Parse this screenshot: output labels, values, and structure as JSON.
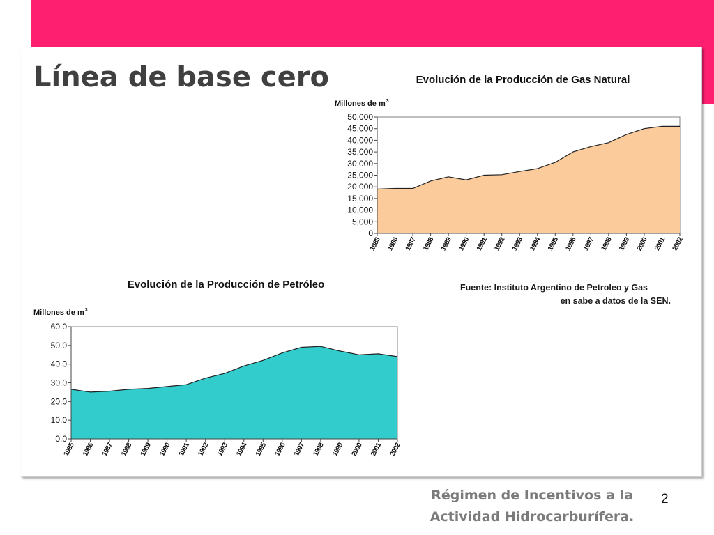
{
  "slide": {
    "title": "Línea de base cero",
    "source_line1": "Fuente:  Instituto Argentino de Petroleo y Gas",
    "source_line2": "en sabe a datos de la SEN.",
    "footer_line1": "Régimen de Incentivos a la",
    "footer_line2": "Actividad Hidrocarburífera.",
    "page_number": "2",
    "colors": {
      "band": "#ff1f70",
      "gas_fill": "#fccb9c",
      "oil_fill": "#33cccc"
    }
  },
  "chart_data": [
    {
      "type": "area",
      "title": "Evolución de la Producción de Gas Natural",
      "ylabel": "Millones de m",
      "ylabel_sup": "3",
      "x": [
        "1985",
        "1986",
        "1987",
        "1988",
        "1989",
        "1990",
        "1991",
        "1992",
        "1993",
        "1994",
        "1995",
        "1996",
        "1997",
        "1998",
        "1999",
        "2000",
        "2001",
        "2002"
      ],
      "series": [
        {
          "values": [
            19000,
            19300,
            19300,
            22500,
            24300,
            23000,
            25000,
            25200,
            26600,
            27800,
            30500,
            35000,
            37300,
            39000,
            42500,
            45000,
            46000,
            46000
          ]
        }
      ],
      "ylim": [
        0,
        50000
      ],
      "yticks": [
        "0",
        "5,000",
        "10,000",
        "15,000",
        "20,000",
        "25,000",
        "30,000",
        "35,000",
        "40,000",
        "45,000",
        "50,000"
      ],
      "grid": false,
      "fill_color": "#fccb9c"
    },
    {
      "type": "area",
      "title": "Evolución de la Producción de Petróleo",
      "ylabel": "Millones de m",
      "ylabel_sup": "3",
      "x": [
        "1985",
        "1986",
        "1987",
        "1988",
        "1989",
        "1990",
        "1991",
        "1992",
        "1993",
        "1994",
        "1995",
        "1996",
        "1997",
        "1998",
        "1999",
        "2000",
        "2001",
        "2002"
      ],
      "series": [
        {
          "values": [
            26.5,
            25,
            25.5,
            26.5,
            27,
            28,
            29,
            32.5,
            35,
            39,
            42,
            46,
            49,
            49.5,
            47,
            45,
            45.5,
            44
          ]
        }
      ],
      "ylim": [
        0,
        60
      ],
      "yticks": [
        "0.0",
        "10.0",
        "20.0",
        "30.0",
        "40.0",
        "50.0",
        "60.0"
      ],
      "grid": false,
      "fill_color": "#33cccc"
    }
  ]
}
